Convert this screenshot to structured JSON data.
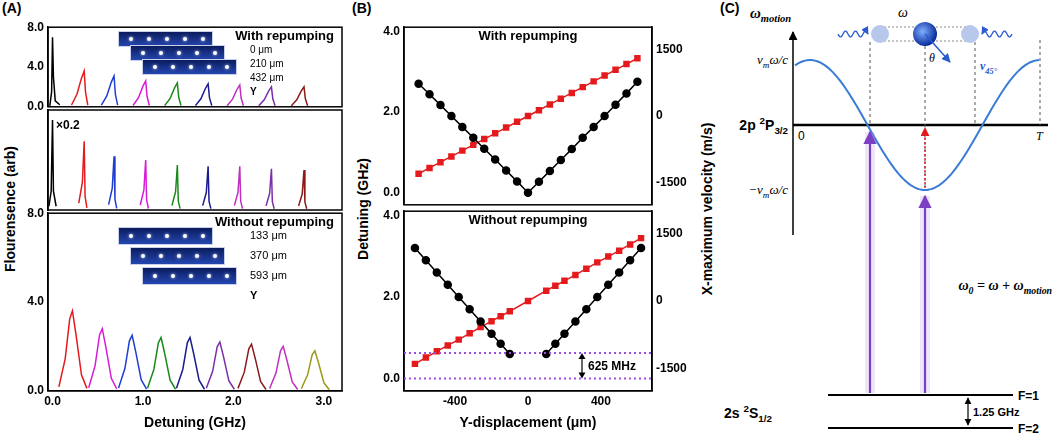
{
  "panel_labels": [
    "(A)",
    "(B)",
    "(C)"
  ],
  "chart_data": [
    {
      "type": "line",
      "title": "With repumping",
      "ylabel": "Flourensence (arb)",
      "xlim": [
        -0.05,
        3.2
      ],
      "ylim": [
        0,
        8
      ],
      "yticks": [
        {
          "value": 0,
          "label": "0.0"
        },
        {
          "value": 4,
          "label": "4.0"
        },
        {
          "value": 8,
          "label": "8.0"
        }
      ],
      "tick_labels": "y",
      "grid": false,
      "inset": {
        "labels": [
          "0 μm",
          "210 μm",
          "432 μm"
        ],
        "axis": "Y"
      },
      "series": [
        {
          "color": "#000000",
          "x": [
            -0.03,
            -0.01,
            0,
            0.01,
            0.03,
            0.08
          ],
          "values": [
            0.1,
            1.5,
            7.0,
            3.0,
            0.6,
            0.2
          ]
        },
        {
          "color": "#e41a1c",
          "x": [
            0.21,
            0.27,
            0.32,
            0.35,
            0.365,
            0.39
          ],
          "values": [
            0.18,
            1.26,
            2.88,
            3.6,
            1.44,
            0.18
          ]
        },
        {
          "color": "#1f3fd0",
          "x": [
            0.54,
            0.6,
            0.65,
            0.68,
            0.695,
            0.72
          ],
          "values": [
            0.16,
            1.09,
            2.48,
            3.1,
            1.24,
            0.16
          ]
        },
        {
          "color": "#d81bd8",
          "x": [
            0.89,
            0.95,
            1.0,
            1.03,
            1.045,
            1.07
          ],
          "values": [
            0.13,
            0.91,
            2.08,
            2.6,
            1.04,
            0.13
          ]
        },
        {
          "color": "#1a8a1a",
          "x": [
            1.24,
            1.3,
            1.35,
            1.38,
            1.395,
            1.42
          ],
          "values": [
            0.12,
            0.84,
            1.92,
            2.4,
            0.96,
            0.12
          ]
        },
        {
          "color": "#1c1c8c",
          "x": [
            1.58,
            1.64,
            1.69,
            1.72,
            1.735,
            1.76
          ],
          "values": [
            0.12,
            0.81,
            1.84,
            2.3,
            0.92,
            0.12
          ]
        },
        {
          "color": "#c030c0",
          "x": [
            1.93,
            1.99,
            2.04,
            2.07,
            2.085,
            2.11
          ],
          "values": [
            0.11,
            0.77,
            1.76,
            2.2,
            0.88,
            0.11
          ]
        },
        {
          "color": "#7a2fa8",
          "x": [
            2.28,
            2.34,
            2.39,
            2.42,
            2.435,
            2.46
          ],
          "values": [
            0.1,
            0.7,
            1.6,
            2.0,
            0.8,
            0.1
          ]
        },
        {
          "color": "#8b1a1a",
          "x": [
            2.64,
            2.7,
            2.75,
            2.78,
            2.795,
            2.82
          ],
          "values": [
            0.1,
            0.7,
            1.6,
            2.0,
            0.8,
            0.1
          ]
        }
      ]
    },
    {
      "type": "line",
      "annotation": "×0.2",
      "xlim": [
        -0.05,
        3.2
      ],
      "ylim": [
        0,
        8
      ],
      "tick_labels": false,
      "grid": false,
      "series": [
        {
          "color": "#000000",
          "x": [
            -0.04,
            -0.015,
            0,
            0.01,
            0.04
          ],
          "values": [
            0.3,
            1.5,
            7.2,
            1.5,
            0.3
          ]
        },
        {
          "color": "#e41a1c",
          "x": [
            0.29,
            0.33,
            0.35,
            0.36,
            0.38
          ],
          "values": [
            0.55,
            2.2,
            5.5,
            1.1,
            0.17
          ]
        },
        {
          "color": "#1f3fd0",
          "x": [
            0.62,
            0.66,
            0.68,
            0.69,
            0.71
          ],
          "values": [
            0.43,
            1.72,
            4.3,
            0.86,
            0.13
          ]
        },
        {
          "color": "#d81bd8",
          "x": [
            0.97,
            1.01,
            1.03,
            1.04,
            1.06
          ],
          "values": [
            0.4,
            1.6,
            4.0,
            0.8,
            0.12
          ]
        },
        {
          "color": "#1a8a1a",
          "x": [
            1.32,
            1.36,
            1.38,
            1.39,
            1.41
          ],
          "values": [
            0.36,
            1.44,
            3.6,
            0.72,
            0.11
          ]
        },
        {
          "color": "#1c1c8c",
          "x": [
            1.66,
            1.7,
            1.72,
            1.73,
            1.75
          ],
          "values": [
            0.35,
            1.4,
            3.5,
            0.7,
            0.11
          ]
        },
        {
          "color": "#c030c0",
          "x": [
            2.01,
            2.05,
            2.07,
            2.08,
            2.1
          ],
          "values": [
            0.35,
            1.4,
            3.5,
            0.7,
            0.11
          ]
        },
        {
          "color": "#7a2fa8",
          "x": [
            2.36,
            2.4,
            2.42,
            2.43,
            2.45
          ],
          "values": [
            0.33,
            1.32,
            3.3,
            0.66,
            0.1
          ]
        },
        {
          "color": "#8b1a1a",
          "x": [
            2.72,
            2.76,
            2.78,
            2.79,
            2.81
          ],
          "values": [
            0.32,
            1.28,
            3.2,
            0.64,
            0.1
          ]
        }
      ]
    },
    {
      "type": "line",
      "title": "Without repumping",
      "xlabel": "Detuning (GHz)",
      "xlim": [
        -0.05,
        3.2
      ],
      "xticks": [
        {
          "value": 0,
          "label": "0.0"
        },
        {
          "value": 1,
          "label": "1.0"
        },
        {
          "value": 2,
          "label": "2.0"
        },
        {
          "value": 3,
          "label": "3.0"
        }
      ],
      "ylim": [
        0,
        8
      ],
      "yticks": [
        {
          "value": 0,
          "label": "0.0"
        },
        {
          "value": 4,
          "label": "4.0"
        },
        {
          "value": 8,
          "label": "8.0"
        }
      ],
      "grid": false,
      "inset": {
        "labels": [
          "133 μm",
          "370 μm",
          "593 μm"
        ],
        "axis": "Y"
      },
      "series": [
        {
          "color": "#e41a1c",
          "x": [
            0.07,
            0.14,
            0.19,
            0.22,
            0.26,
            0.32,
            0.38
          ],
          "values": [
            0.18,
            1.44,
            3.24,
            3.6,
            2.52,
            0.72,
            0.11
          ]
        },
        {
          "color": "#d81bd8",
          "x": [
            0.4,
            0.47,
            0.52,
            0.55,
            0.59,
            0.65,
            0.71
          ],
          "values": [
            0.14,
            1.12,
            2.52,
            2.8,
            1.96,
            0.56,
            0.08
          ]
        },
        {
          "color": "#1f3fd0",
          "x": [
            0.73,
            0.8,
            0.85,
            0.88,
            0.92,
            0.98,
            1.04
          ],
          "values": [
            0.13,
            1.0,
            2.25,
            2.5,
            1.75,
            0.5,
            0.08
          ]
        },
        {
          "color": "#1a8a1a",
          "x": [
            1.05,
            1.12,
            1.17,
            1.2,
            1.24,
            1.3,
            1.36
          ],
          "values": [
            0.12,
            0.96,
            2.16,
            2.4,
            1.68,
            0.48,
            0.07
          ]
        },
        {
          "color": "#1c1c8c",
          "x": [
            1.37,
            1.44,
            1.49,
            1.52,
            1.56,
            1.62,
            1.68
          ],
          "values": [
            0.12,
            0.96,
            2.16,
            2.4,
            1.68,
            0.48,
            0.07
          ]
        },
        {
          "color": "#7a2fa8",
          "x": [
            1.7,
            1.77,
            1.82,
            1.85,
            1.89,
            1.95,
            2.01
          ],
          "values": [
            0.11,
            0.88,
            1.98,
            2.2,
            1.54,
            0.44,
            0.07
          ]
        },
        {
          "color": "#8b1a1a",
          "x": [
            2.05,
            2.12,
            2.17,
            2.2,
            2.24,
            2.3,
            2.36
          ],
          "values": [
            0.11,
            0.84,
            1.89,
            2.1,
            1.47,
            0.42,
            0.06
          ]
        },
        {
          "color": "#c030c0",
          "x": [
            2.4,
            2.47,
            2.52,
            2.55,
            2.59,
            2.65,
            2.71
          ],
          "values": [
            0.1,
            0.8,
            1.8,
            2.0,
            1.4,
            0.4,
            0.06
          ]
        },
        {
          "color": "#9a9a1a",
          "x": [
            2.75,
            2.82,
            2.87,
            2.9,
            2.94,
            3.0,
            3.06
          ],
          "values": [
            0.09,
            0.72,
            1.62,
            1.8,
            1.26,
            0.36,
            0.05
          ]
        }
      ]
    },
    {
      "type": "line",
      "title": "With repumping",
      "ylabel": "Detuning (GHz)",
      "y2label": "X-maximum velocity (m/s)",
      "xlim": [
        -680,
        680
      ],
      "ylim": [
        -0.3,
        4.1
      ],
      "yticks": [
        {
          "value": 0,
          "label": "0.0"
        },
        {
          "value": 2,
          "label": "2.0"
        },
        {
          "value": 4,
          "label": "4.0"
        }
      ],
      "y2lim": [
        -2000,
        2000
      ],
      "y2ticks": [
        -1500,
        0,
        1500
      ],
      "tick_labels": "y",
      "grid": false,
      "x": [
        -600,
        -540,
        -480,
        -420,
        -360,
        -300,
        -240,
        -180,
        -120,
        -60,
        0,
        60,
        120,
        180,
        240,
        300,
        360,
        420,
        480,
        540,
        600
      ],
      "series": [
        {
          "color": "#000000",
          "marker": "circle",
          "line_style": "solid",
          "values": [
            2.7,
            2.44,
            2.17,
            1.9,
            1.63,
            1.36,
            1.09,
            0.82,
            0.55,
            0.28,
            0.0,
            0.27,
            0.54,
            0.81,
            1.08,
            1.36,
            1.63,
            1.9,
            2.18,
            2.46,
            2.75
          ]
        },
        {
          "color": "#e41a1c",
          "marker": "square",
          "line_style": "solid",
          "axis": "y2",
          "values": [
            -1300,
            -1170,
            -1040,
            -910,
            -780,
            -650,
            -520,
            -390,
            -260,
            -130,
            0,
            130,
            260,
            390,
            520,
            650,
            780,
            910,
            1040,
            1170,
            1300
          ]
        }
      ]
    },
    {
      "type": "line",
      "title": "Without repumping",
      "xlabel": "Y-displacement (μm)",
      "xlim": [
        -680,
        680
      ],
      "xticks": [
        -400,
        0,
        400
      ],
      "ylim": [
        -0.3,
        4.1
      ],
      "yticks": [
        {
          "value": 0,
          "label": "0.0"
        },
        {
          "value": 2,
          "label": "2.0"
        },
        {
          "value": 4,
          "label": "4.0"
        }
      ],
      "y2lim": [
        -2000,
        2000
      ],
      "y2ticks": [
        -1500,
        0,
        1500
      ],
      "grid": false,
      "hlines": {
        "values": [
          0,
          0.625
        ],
        "color": "#9b4fe0",
        "line_style": "dotted",
        "label": "625 MHz"
      },
      "x": [
        -620,
        -560,
        -500,
        -440,
        -380,
        -320,
        -260,
        -200,
        -150,
        -100,
        0,
        100,
        150,
        200,
        260,
        320,
        380,
        440,
        500,
        560,
        620
      ],
      "series": [
        {
          "color": "#000000",
          "marker": "circle",
          "line_style": "solid",
          "values": [
            3.2,
            2.9,
            2.6,
            2.3,
            2.0,
            1.7,
            1.4,
            1.1,
            0.85,
            0.6,
            null,
            0.6,
            0.85,
            1.1,
            1.4,
            1.7,
            2.0,
            2.3,
            2.6,
            2.9,
            3.2
          ]
        },
        {
          "color": "#e41a1c",
          "marker": "square",
          "line_style": "solid",
          "axis": "y2",
          "values": [
            -1400,
            -1260,
            -1120,
            -990,
            -860,
            -720,
            -580,
            -450,
            -340,
            -230,
            0,
            230,
            340,
            450,
            580,
            720,
            860,
            990,
            1120,
            1260,
            1400
          ]
        }
      ]
    }
  ],
  "diagram": {
    "axis_label": [
      "ω",
      {
        "sub": "motion"
      }
    ],
    "max_label": [
      "v",
      {
        "sub": "m"
      },
      "ω/c"
    ],
    "min_label": [
      "−v",
      {
        "sub": "m"
      },
      "ω/c"
    ],
    "origin_label": "0",
    "period_label": "T",
    "upper_level": [
      "2p ",
      {
        "sup": "2"
      },
      "P",
      {
        "sub": "3/2"
      }
    ],
    "lower_level": [
      "2s ",
      {
        "sup": "2"
      },
      "S",
      {
        "sub": "1/2"
      }
    ],
    "sublevels": [
      "F=1",
      "F=2"
    ],
    "splitting": "1.25 GHz",
    "equation": [
      "ω",
      {
        "sub": "0"
      },
      " = ω + ω",
      {
        "sub": "motion"
      }
    ],
    "photon_label": "ω",
    "angle_label": "θ",
    "velocity_label": [
      "v",
      {
        "sub": "45°"
      }
    ]
  }
}
